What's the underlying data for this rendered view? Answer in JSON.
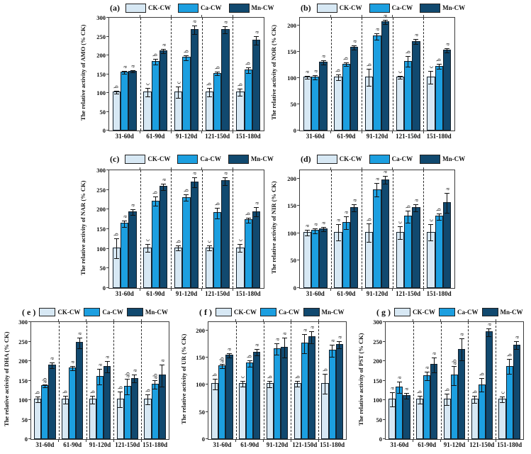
{
  "figure": {
    "background": "#ffffff",
    "series_colors": [
      "#d7e8f4",
      "#1c9fe0",
      "#11496f"
    ],
    "bar_border": "#14202b",
    "axis_color": "#3c3c3c"
  },
  "legend_labels": [
    "CK-CW",
    "Ca-CW",
    "Mn-CW"
  ],
  "chart_data": [
    {
      "id": "a",
      "panel_label": "(a)",
      "type": "bar",
      "ylabel": "The relative activity of AMO (% CK)",
      "ylim": [
        0,
        300
      ],
      "yticks": [
        0,
        50,
        100,
        150,
        200,
        250,
        300
      ],
      "categories": [
        "31-60d",
        "61-90d",
        "91-120d",
        "121-150d",
        "151-180d"
      ],
      "series": [
        {
          "name": "CK-CW",
          "values": [
            100,
            100,
            100,
            100,
            100
          ],
          "errors": [
            3,
            12,
            16,
            12,
            10
          ],
          "letters": [
            "b",
            "c",
            "c",
            "b",
            "b"
          ]
        },
        {
          "name": "Ca-CW",
          "values": [
            153,
            181,
            192,
            150,
            159
          ],
          "errors": [
            4,
            7,
            7,
            4,
            8
          ],
          "letters": [
            "a",
            "b",
            "b",
            "b",
            "b"
          ]
        },
        {
          "name": "Mn-CW",
          "values": [
            155,
            210,
            266,
            266,
            238
          ],
          "errors": [
            3,
            6,
            12,
            10,
            12
          ],
          "letters": [
            "a",
            "a",
            "a",
            "a",
            "a"
          ]
        }
      ]
    },
    {
      "id": "b",
      "panel_label": "(b)",
      "type": "bar",
      "ylabel": "The relative activity of NOR (% CK)",
      "ylim": [
        0,
        215
      ],
      "yticks": [
        0,
        50,
        100,
        150,
        200
      ],
      "categories": [
        "31-60d",
        "61-90d",
        "91-120d",
        "121-150d",
        "151-180d"
      ],
      "series": [
        {
          "name": "CK-CW",
          "values": [
            100,
            100,
            100,
            100,
            100
          ],
          "errors": [
            3,
            5,
            16,
            3,
            12
          ],
          "letters": [
            "a",
            "b",
            "b",
            "c",
            "c"
          ]
        },
        {
          "name": "Ca-CW",
          "values": [
            100,
            125,
            178,
            130,
            121
          ],
          "errors": [
            4,
            3,
            6,
            10,
            5
          ],
          "letters": [
            "a",
            "b",
            "a",
            "b",
            "b"
          ]
        },
        {
          "name": "Mn-CW",
          "values": [
            129,
            157,
            206,
            168,
            152
          ],
          "errors": [
            4,
            4,
            4,
            5,
            4
          ],
          "letters": [
            "a",
            "a",
            "a",
            "a",
            "a"
          ]
        }
      ]
    },
    {
      "id": "c",
      "panel_label": "(c)",
      "type": "bar",
      "ylabel": "The relative activity of NAR (% CK)",
      "ylim": [
        0,
        300
      ],
      "yticks": [
        0,
        50,
        100,
        150,
        200,
        250,
        300
      ],
      "categories": [
        "31-60d",
        "61-90d",
        "91-120d",
        "121-150d",
        "151-180d"
      ],
      "series": [
        {
          "name": "CK-CW",
          "values": [
            100,
            100,
            100,
            100,
            100
          ],
          "errors": [
            25,
            10,
            6,
            6,
            10
          ],
          "letters": [
            "b",
            "c",
            "b",
            "c",
            "c"
          ]
        },
        {
          "name": "Ca-CW",
          "values": [
            162,
            219,
            228,
            189,
            171
          ],
          "errors": [
            8,
            12,
            8,
            13,
            6
          ],
          "letters": [
            "a",
            "b",
            "b",
            "b",
            "b"
          ]
        },
        {
          "name": "Mn-CW",
          "values": [
            192,
            256,
            267,
            271,
            192
          ],
          "errors": [
            7,
            8,
            13,
            10,
            12
          ],
          "letters": [
            "a",
            "a",
            "a",
            "a",
            "a"
          ]
        }
      ]
    },
    {
      "id": "d",
      "panel_label": "(d)",
      "type": "bar",
      "ylabel": "The relative activity of NIR (% CK)",
      "ylim": [
        0,
        215
      ],
      "yticks": [
        0,
        50,
        100,
        150,
        200
      ],
      "categories": [
        "31-60d",
        "61-90d",
        "91-120d",
        "121-150d",
        "151-180d"
      ],
      "series": [
        {
          "name": "CK-CW",
          "values": [
            100,
            100,
            100,
            100,
            100
          ],
          "errors": [
            5,
            15,
            17,
            12,
            15
          ],
          "letters": [
            "a",
            "a",
            "b",
            "c",
            "c"
          ]
        },
        {
          "name": "Ca-CW",
          "values": [
            103,
            118,
            178,
            129,
            129
          ],
          "errors": [
            5,
            12,
            12,
            11,
            6
          ],
          "letters": [
            "a",
            "a",
            "a",
            "b",
            "b"
          ]
        },
        {
          "name": "Mn-CW",
          "values": [
            106,
            145,
            196,
            145,
            154
          ],
          "errors": [
            4,
            7,
            7,
            7,
            18
          ],
          "letters": [
            "a",
            "a",
            "a",
            "a",
            "a"
          ]
        }
      ]
    },
    {
      "id": "e",
      "panel_label": "( e )",
      "type": "bar",
      "ylabel": "The relative activity of DHA (% CK)",
      "ylim": [
        0,
        300
      ],
      "yticks": [
        0,
        50,
        100,
        150,
        200,
        250,
        300
      ],
      "categories": [
        "31-60d",
        "61-90d",
        "91-120d",
        "121-150d",
        "151-180d"
      ],
      "series": [
        {
          "name": "CK-CW",
          "values": [
            100,
            100,
            100,
            100,
            100
          ],
          "errors": [
            8,
            10,
            10,
            20,
            12
          ],
          "letters": [
            "b",
            "b",
            "b",
            "b",
            "b"
          ]
        },
        {
          "name": "Ca-CW",
          "values": [
            135,
            180,
            158,
            132,
            138
          ],
          "errors": [
            4,
            5,
            20,
            20,
            11
          ],
          "letters": [
            "ab",
            "a",
            "a",
            "ab",
            "ab"
          ]
        },
        {
          "name": "Mn-CW",
          "values": [
            187,
            245,
            184,
            153,
            161
          ],
          "errors": [
            7,
            14,
            14,
            10,
            28
          ],
          "letters": [
            "a",
            "a",
            "a",
            "a",
            "a"
          ]
        }
      ]
    },
    {
      "id": "f",
      "panel_label": "( f )",
      "type": "bar",
      "ylabel": "The relative activity of UR (% CK)",
      "ylim": [
        0,
        215
      ],
      "yticks": [
        0,
        50,
        100,
        150,
        200
      ],
      "categories": [
        "31-60d",
        "61-90d",
        "91-120d",
        "121-150d",
        "151-180d"
      ],
      "series": [
        {
          "name": "CK-CW",
          "values": [
            100,
            100,
            100,
            100,
            100
          ],
          "errors": [
            10,
            5,
            6,
            5,
            18
          ],
          "letters": [
            "b",
            "c",
            "b",
            "b",
            "b"
          ]
        },
        {
          "name": "Ca-CW",
          "values": [
            133,
            138,
            164,
            174,
            161
          ],
          "errors": [
            4,
            6,
            10,
            18,
            11
          ],
          "letters": [
            "ab",
            "b",
            "a",
            "a",
            "a"
          ]
        },
        {
          "name": "Mn-CW",
          "values": [
            153,
            158,
            167,
            186,
            172
          ],
          "errors": [
            4,
            6,
            18,
            11,
            6
          ],
          "letters": [
            "a",
            "a",
            "a",
            "a",
            "a"
          ]
        }
      ]
    },
    {
      "id": "g",
      "panel_label": "( g )",
      "type": "bar",
      "ylabel": "The relative activity of PST (% CK)",
      "ylim": [
        0,
        300
      ],
      "yticks": [
        0,
        50,
        100,
        150,
        200,
        250,
        300
      ],
      "categories": [
        "31-60d",
        "61-90d",
        "91-120d",
        "121-150d",
        "151-180d"
      ],
      "series": [
        {
          "name": "CK-CW",
          "values": [
            100,
            100,
            100,
            100,
            100
          ],
          "errors": [
            18,
            10,
            15,
            9,
            8
          ],
          "letters": [
            "a",
            "b",
            "b",
            "b",
            "c"
          ]
        },
        {
          "name": "Ca-CW",
          "values": [
            131,
            160,
            161,
            137,
            184
          ],
          "errors": [
            15,
            11,
            25,
            17,
            19
          ],
          "letters": [
            "a",
            "a",
            "ab",
            "b",
            "b"
          ]
        },
        {
          "name": "Mn-CW",
          "values": [
            109,
            189,
            228,
            272,
            239
          ],
          "errors": [
            8,
            19,
            28,
            10,
            10
          ],
          "letters": [
            "a",
            "a",
            "a",
            "a",
            "a"
          ]
        }
      ]
    }
  ]
}
